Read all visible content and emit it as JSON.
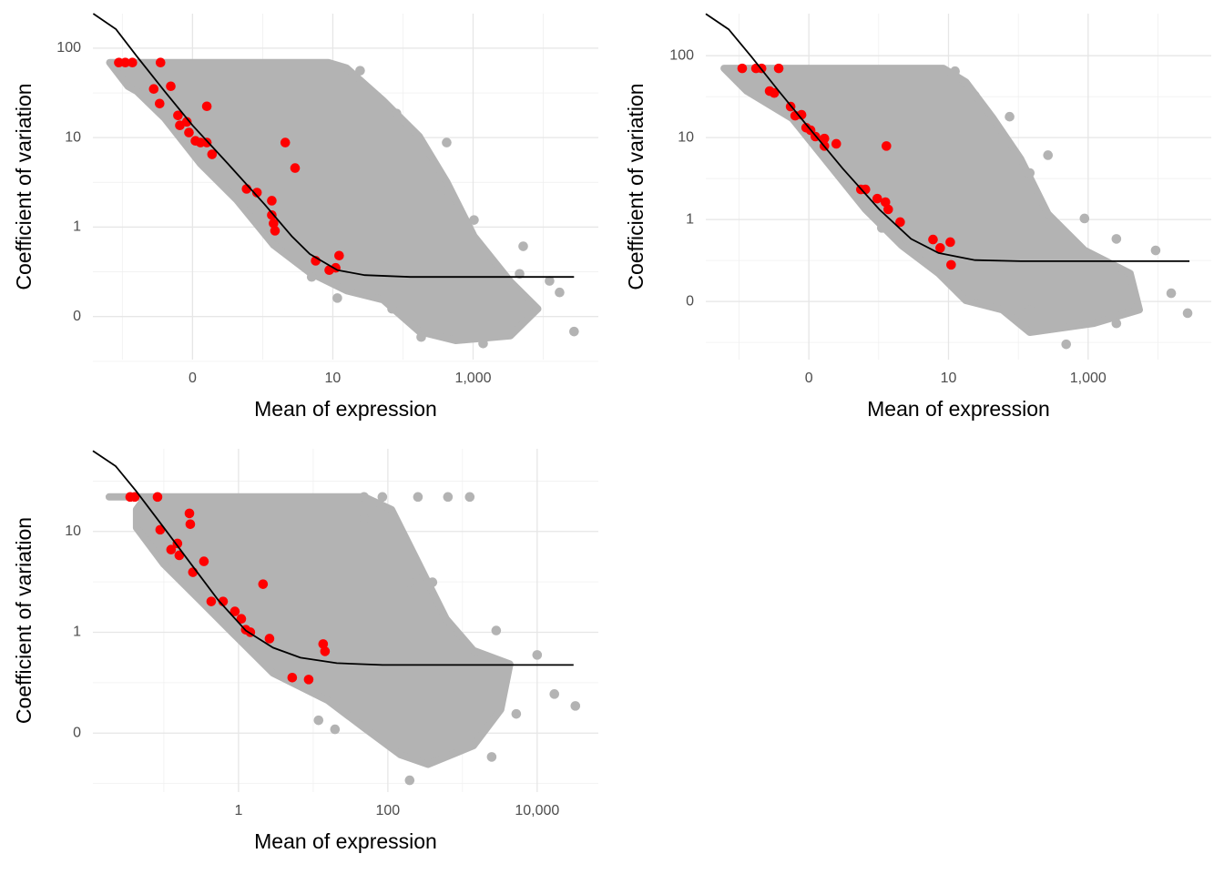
{
  "chart_data": [
    {
      "type": "scatter",
      "xlabel": "Mean of expression",
      "ylabel": "Coefficient of variation",
      "xlog": true,
      "ylog": true,
      "grid": true,
      "xlim": [
        0.0038,
        61000
      ],
      "ylim": [
        0.033,
        243
      ],
      "xticks": [
        {
          "value": 0.1,
          "label": "0"
        },
        10,
        {
          "value": 1000,
          "label": "1,000"
        }
      ],
      "xminor": [
        0.01,
        1,
        100,
        10000
      ],
      "yticks": [
        100,
        10,
        1,
        {
          "value": 0.1,
          "label": "0"
        }
      ],
      "yminor": [
        31.6,
        3.16,
        0.316,
        0.0316
      ],
      "series": [
        {
          "mark": "polygon",
          "color": "#b3b3b3",
          "x": [
            0.0066,
            8.6,
            15.7,
            52,
            171,
            420,
            1030,
            3400,
            8360,
            3400,
            566,
            171,
            52,
            15.7,
            4.7,
            1.43,
            0.43,
            0.13,
            0.04,
            0.0161,
            0.012
          ],
          "y": [
            69,
            69,
            60,
            26,
            10.3,
            3.2,
            0.79,
            0.246,
            0.122,
            0.061,
            0.054,
            0.068,
            0.154,
            0.195,
            0.31,
            0.63,
            2.0,
            5.1,
            16.5,
            33,
            37.5
          ]
        },
        {
          "mark": "point",
          "color": "#b3b3b3",
          "x": [
            24.5,
            81,
            420,
            361,
            1030,
            5180,
            4600,
            12300,
            17100,
            27500,
            182,
            1390,
            70,
            11.6,
            5.0
          ],
          "y": [
            56,
            18.6,
            8.8,
            2.55,
            1.2,
            0.61,
            0.3,
            0.25,
            0.186,
            0.068,
            0.059,
            0.05,
            0.122,
            0.161,
            0.277
          ]
        },
        {
          "mark": "point",
          "color": "#ff0000",
          "x": [
            0.0089,
            0.011,
            0.0139,
            0.035,
            0.028,
            0.049,
            0.034,
            0.062,
            0.083,
            0.066,
            0.089,
            0.11,
            0.13,
            0.16,
            0.16,
            0.19,
            0.59,
            0.83,
            1.35,
            1.35,
            1.43,
            1.5,
            2.1,
            2.9,
            5.7,
            8.9,
            11,
            12.3
          ],
          "y": [
            69,
            69,
            69,
            69,
            35,
            37.5,
            24,
            17.7,
            15,
            13.7,
            11.4,
            9.2,
            8.8,
            8.8,
            22.4,
            6.5,
            2.67,
            2.43,
            1.97,
            1.36,
            1.1,
            0.91,
            8.8,
            4.57,
            0.42,
            0.33,
            0.35,
            0.48
          ]
        },
        {
          "mark": "line",
          "color": "#000000",
          "x": [
            0.00384,
            0.0081,
            0.0161,
            0.04,
            0.1,
            0.32,
            1.06,
            2.6,
            4.7,
            11.6,
            28.5,
            127,
            27500
          ],
          "y": [
            243,
            163,
            81,
            33,
            13.7,
            5.1,
            1.8,
            0.79,
            0.5,
            0.33,
            0.29,
            0.277,
            0.277
          ]
        }
      ]
    },
    {
      "type": "scatter",
      "xlabel": "Mean of expression",
      "ylabel": "Coefficient of variation",
      "xlog": true,
      "ylog": true,
      "grid": true,
      "xlim": [
        0.00334,
        58000
      ],
      "ylim": [
        0.0195,
        326
      ],
      "xticks": [
        {
          "value": 0.1,
          "label": "0"
        },
        10,
        {
          "value": 1000,
          "label": "1,000"
        }
      ],
      "xminor": [
        0.01,
        1,
        100,
        10000
      ],
      "yticks": [
        100,
        10,
        1,
        {
          "value": 0.1,
          "label": "0"
        }
      ],
      "yminor": [
        31.6,
        3.16,
        0.316,
        0.0316
      ],
      "series": [
        {
          "mark": "polygon",
          "color": "#b3b3b3",
          "x": [
            0.0061,
            8.4,
            17.7,
            43.7,
            108,
            266,
            887,
            3990,
            5400,
            1200,
            146,
            59,
            17.7,
            7.2,
            2.15,
            0.646,
            0.194,
            0.058,
            0.0129
          ],
          "y": [
            70,
            70,
            47.6,
            17.1,
            5.5,
            1.17,
            0.42,
            0.22,
            0.079,
            0.054,
            0.042,
            0.079,
            0.103,
            0.22,
            0.48,
            1.33,
            4.76,
            17.1,
            37
          ]
        },
        {
          "mark": "point",
          "color": "#b3b3b3",
          "x": [
            12.4,
            23.9,
            75,
            146,
            266,
            887,
            2540,
            9270,
            15500,
            26600,
            485,
            2540,
            146,
            1.11
          ],
          "y": [
            64.7,
            32.5,
            18,
            3.7,
            6.1,
            1.03,
            0.58,
            0.42,
            0.126,
            0.072,
            0.03,
            0.054,
            0.079,
            0.79
          ]
        },
        {
          "mark": "point",
          "color": "#ff0000",
          "x": [
            0.0111,
            0.0175,
            0.021,
            0.037,
            0.0274,
            0.0319,
            0.0548,
            0.0637,
            0.0785,
            0.0914,
            0.106,
            0.124,
            0.167,
            0.167,
            0.247,
            1.29,
            0.556,
            0.646,
            0.955,
            1.25,
            1.37,
            2.03,
            6.0,
            7.6,
            10.6,
            10.9
          ],
          "y": [
            70,
            70,
            70,
            70,
            37,
            35,
            23.9,
            18.5,
            19,
            13.2,
            12.3,
            10.3,
            9.75,
            7.9,
            8.4,
            7.9,
            2.33,
            2.33,
            1.8,
            1.63,
            1.33,
            0.93,
            0.57,
            0.45,
            0.53,
            0.28
          ]
        },
        {
          "mark": "line",
          "color": "#000000",
          "x": [
            0.00334,
            0.0071,
            0.015,
            0.037,
            0.1,
            0.305,
            1.02,
            2.91,
            7.2,
            23.9,
            108,
            28300
          ],
          "y": [
            324,
            210,
            97.5,
            37,
            13.2,
            4.2,
            1.33,
            0.58,
            0.39,
            0.32,
            0.31,
            0.31
          ]
        }
      ]
    },
    {
      "type": "scatter",
      "xlabel": "Mean of expression",
      "ylabel": "Coefficient of variation",
      "xlog": true,
      "ylog": true,
      "grid": true,
      "xlim": [
        0.0112,
        66000
      ],
      "ylim": [
        0.026,
        66
      ],
      "xticks": [
        1,
        100,
        {
          "value": 10000,
          "label": "10,000"
        }
      ],
      "xminor": [
        0.1,
        10,
        1000
      ],
      "yticks": [
        10,
        1,
        {
          "value": 0.1,
          "label": "0"
        }
      ],
      "yminor": [
        31.6,
        3.16,
        0.316,
        0.0316
      ],
      "series": [
        {
          "mark": "polygon",
          "color": "#b3b3b3",
          "x": [
            0.0185,
            48,
            112,
            260,
            603,
            1400,
            4300,
            3250,
            1400,
            344,
            148,
            48,
            15.7,
            2.9,
            0.945,
            0.308,
            0.1,
            0.043,
            0.043,
            0.057
          ],
          "y": [
            22,
            22,
            16.5,
            4.74,
            1.36,
            0.66,
            0.484,
            0.171,
            0.075,
            0.049,
            0.061,
            0.113,
            0.211,
            0.394,
            0.9,
            2.07,
            4.74,
            10.9,
            16.5,
            22
          ]
        },
        {
          "mark": "point",
          "color": "#b3b3b3",
          "x": [
            48,
            84.5,
            253,
            638,
            1250,
            48,
            196,
            396,
            694,
            2830,
            10000,
            17000,
            32500,
            5250,
            2460,
            11.8,
            19.6,
            196
          ],
          "y": [
            22,
            22,
            22,
            22,
            22,
            13.4,
            3.13,
            3.13,
            1.11,
            1.04,
            0.596,
            0.244,
            0.186,
            0.155,
            0.058,
            0.134,
            0.109,
            0.034
          ]
        },
        {
          "mark": "point",
          "color": "#ff0000",
          "x": [
            0.0354,
            0.0407,
            0.0822,
            0.0893,
            0.125,
            0.152,
            0.161,
            0.22,
            0.226,
            0.245,
            0.344,
            0.431,
            0.621,
            0.894,
            1.09,
            1.25,
            1.44,
            2.13,
            2.6,
            5.24,
            8.7,
            13.6,
            14.4
          ],
          "y": [
            22,
            22,
            22,
            10.4,
            6.6,
            7.6,
            5.8,
            15.1,
            11.8,
            3.94,
            5.05,
            2.02,
            2.02,
            1.61,
            1.36,
            1.06,
            1.0,
            3.0,
            0.865,
            0.355,
            0.34,
            0.764,
            0.647
          ]
        },
        {
          "mark": "line",
          "color": "#000000",
          "x": [
            0.0112,
            0.0226,
            0.043,
            0.1,
            0.232,
            0.539,
            1.25,
            2.9,
            6.75,
            20.7,
            84.5,
            30700
          ],
          "y": [
            63,
            44.5,
            24.9,
            10.9,
            4.74,
            2.07,
            1.04,
            0.703,
            0.56,
            0.494,
            0.474,
            0.474
          ]
        }
      ]
    }
  ]
}
